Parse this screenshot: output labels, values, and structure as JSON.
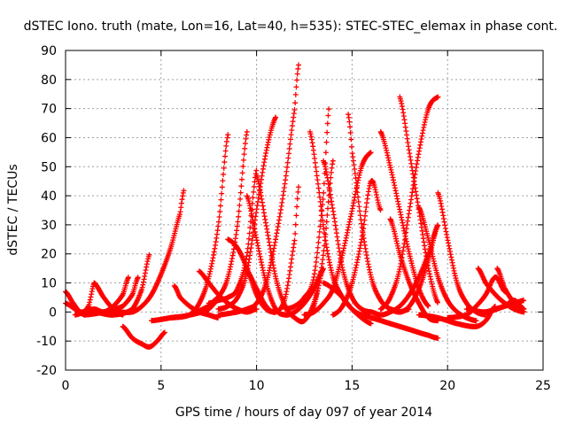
{
  "chart_data": {
    "type": "scatter",
    "title": "dSTEC Iono. truth (mate, Lon=16, Lat=40, h=535): STEC-STEC_elemax in phase cont.",
    "xlabel": "GPS time / hours of day 097 of year 2014",
    "ylabel": "dSTEC  / TECUs",
    "xlim": [
      0,
      25
    ],
    "ylim": [
      -20,
      90
    ],
    "xticks": [
      0,
      5,
      10,
      15,
      20,
      25
    ],
    "yticks": [
      -20,
      -10,
      0,
      10,
      20,
      30,
      40,
      50,
      60,
      70,
      80,
      90
    ],
    "grid": true,
    "marker": "+",
    "color": "#ff0000",
    "series": [
      {
        "x": [
          0.0,
          0.4,
          0.8,
          1.2,
          1.5
        ],
        "y": [
          7,
          3,
          0,
          2,
          10
        ]
      },
      {
        "x": [
          0.0,
          0.5,
          1.0
        ],
        "y": [
          3,
          1,
          -1
        ]
      },
      {
        "x": [
          1.5,
          2.0,
          2.5,
          3.0
        ],
        "y": [
          10,
          5,
          1,
          -1
        ]
      },
      {
        "x": [
          0.5,
          1.0,
          1.5,
          2.0,
          2.5,
          3.0,
          3.3
        ],
        "y": [
          -1,
          0,
          1,
          0,
          2,
          6,
          12
        ]
      },
      {
        "x": [
          1.0,
          2.0,
          3.0,
          3.5,
          3.8
        ],
        "y": [
          -1,
          0,
          2,
          6,
          12
        ]
      },
      {
        "x": [
          1.5,
          2.5,
          3.5,
          4.0,
          4.4
        ],
        "y": [
          0,
          -1,
          1,
          8,
          20
        ]
      },
      {
        "x": [
          2.5,
          3.5,
          4.0,
          4.5,
          5.0,
          5.5,
          6.0,
          6.2
        ],
        "y": [
          0,
          0,
          2,
          6,
          13,
          22,
          34,
          42
        ]
      },
      {
        "x": [
          3.0,
          3.5,
          4.0,
          4.4,
          4.8,
          5.2
        ],
        "y": [
          -5,
          -9,
          -11,
          -12,
          -10,
          -7
        ]
      },
      {
        "x": [
          4.5,
          5.5,
          6.5,
          7.5,
          8.0
        ],
        "y": [
          -3,
          -2,
          -1,
          2,
          5
        ]
      },
      {
        "x": [
          5.5,
          6.5,
          7.0,
          7.5,
          8.0,
          8.5
        ],
        "y": [
          -2,
          -1,
          3,
          12,
          30,
          61
        ]
      },
      {
        "x": [
          6.5,
          7.5,
          8.0,
          8.5,
          9.0,
          9.5
        ],
        "y": [
          -1,
          1,
          5,
          12,
          30,
          62
        ]
      },
      {
        "x": [
          5.7,
          6.0,
          6.5,
          7.0,
          7.5,
          8.0
        ],
        "y": [
          9,
          5,
          2,
          0,
          -1,
          -2
        ]
      },
      {
        "x": [
          7.5,
          8.0,
          8.5,
          9.0,
          9.5,
          10.0
        ],
        "y": [
          3,
          4,
          5,
          8,
          20,
          49
        ]
      },
      {
        "x": [
          8.0,
          8.5,
          9.0,
          9.5,
          10.0,
          10.5,
          11.0
        ],
        "y": [
          1,
          2,
          5,
          14,
          35,
          55,
          67
        ]
      },
      {
        "x": [
          8.0,
          9.0,
          9.5,
          10.0,
          10.5,
          11.0,
          11.5,
          12.0,
          12.2
        ],
        "y": [
          -1,
          0,
          1,
          3,
          10,
          25,
          45,
          70,
          85
        ]
      },
      {
        "x": [
          7.0,
          7.5,
          8.0,
          8.5,
          9.0,
          9.5,
          10.0
        ],
        "y": [
          14,
          10,
          6,
          3,
          1,
          0,
          1
        ]
      },
      {
        "x": [
          8.5,
          9.0,
          9.5,
          10.0,
          10.5,
          11.0
        ],
        "y": [
          25,
          22,
          15,
          6,
          1,
          0
        ]
      },
      {
        "x": [
          9.5,
          10.0,
          10.5,
          11.0,
          11.5,
          12.0,
          12.2
        ],
        "y": [
          14,
          8,
          2,
          0,
          5,
          25,
          43
        ]
      },
      {
        "x": [
          9.5,
          10.0,
          10.5,
          11.0,
          11.5,
          12.0,
          12.5,
          13.0,
          13.5
        ],
        "y": [
          40,
          25,
          10,
          1,
          -1,
          0,
          3,
          8,
          15
        ]
      },
      {
        "x": [
          10.0,
          10.5,
          11.0,
          11.5,
          12.0,
          12.5,
          13.0,
          13.5
        ],
        "y": [
          47,
          30,
          12,
          2,
          -2,
          -3,
          3,
          15
        ]
      },
      {
        "x": [
          11.5,
          12.0,
          12.5,
          13.0,
          13.5,
          13.8
        ],
        "y": [
          1,
          2,
          5,
          12,
          40,
          71
        ]
      },
      {
        "x": [
          12.5,
          13.0,
          13.5,
          14.0
        ],
        "y": [
          -1,
          2,
          20,
          52
        ]
      },
      {
        "x": [
          12.8,
          13.2,
          13.6,
          14.0,
          14.5,
          15.0,
          15.5
        ],
        "y": [
          62,
          45,
          25,
          12,
          5,
          1,
          -1
        ]
      },
      {
        "x": [
          13.5,
          14.0,
          14.5,
          15.0,
          15.5,
          16.0
        ],
        "y": [
          52,
          35,
          15,
          5,
          1,
          0
        ]
      },
      {
        "x": [
          12.5,
          13.0,
          13.5,
          14.0,
          14.5,
          15.0,
          15.5,
          16.0
        ],
        "y": [
          -1,
          0,
          3,
          8,
          20,
          35,
          50,
          55
        ]
      },
      {
        "x": [
          13.5,
          14.0,
          14.5,
          15.0,
          15.5,
          16.0
        ],
        "y": [
          10,
          8,
          5,
          1,
          -2,
          -4
        ]
      },
      {
        "x": [
          14.0,
          14.5,
          15.0,
          15.5,
          16.0,
          16.5
        ],
        "y": [
          -1,
          2,
          10,
          25,
          45,
          35
        ]
      },
      {
        "x": [
          14.8,
          15.0,
          15.5,
          16.0,
          16.5,
          17.0,
          17.5,
          18.0
        ],
        "y": [
          68,
          55,
          30,
          12,
          4,
          1,
          0,
          1
        ]
      },
      {
        "x": [
          16.5,
          17.0,
          17.5,
          18.0,
          18.5,
          19.0
        ],
        "y": [
          62,
          50,
          35,
          20,
          8,
          2
        ]
      },
      {
        "x": [
          17.0,
          17.5,
          18.0,
          18.5,
          19.0,
          19.5
        ],
        "y": [
          32,
          20,
          10,
          3,
          -2,
          -3
        ]
      },
      {
        "x": [
          16.5,
          17.0,
          17.5,
          18.0,
          18.5,
          19.0,
          19.5
        ],
        "y": [
          1,
          5,
          15,
          35,
          55,
          70,
          74
        ]
      },
      {
        "x": [
          17.5,
          18.0,
          18.5,
          19.0,
          19.5
        ],
        "y": [
          74,
          55,
          35,
          15,
          3
        ]
      },
      {
        "x": [
          16.0,
          16.5,
          17.0,
          17.5,
          18.0,
          18.5,
          19.0,
          19.5
        ],
        "y": [
          0,
          -1,
          0,
          2,
          6,
          12,
          20,
          30
        ]
      },
      {
        "x": [
          17.0,
          17.5,
          18.0,
          18.5,
          19.0,
          19.5
        ],
        "y": [
          1,
          0,
          2,
          8,
          18,
          30
        ]
      },
      {
        "x": [
          15.5,
          16.0,
          17.0,
          18.0,
          19.0,
          19.5
        ],
        "y": [
          -1,
          -2,
          -4,
          -6,
          -8,
          -9
        ]
      },
      {
        "x": [
          18.5,
          19.0,
          19.5,
          20.0,
          20.5,
          21.0,
          21.5
        ],
        "y": [
          36,
          25,
          12,
          4,
          0,
          -2,
          -3
        ]
      },
      {
        "x": [
          19.5,
          20.0,
          20.5,
          21.0,
          21.5,
          22.0
        ],
        "y": [
          41,
          25,
          10,
          3,
          0,
          -1
        ]
      },
      {
        "x": [
          18.5,
          19.5,
          20.5,
          21.5,
          22.0,
          22.5
        ],
        "y": [
          -1,
          -2,
          -4,
          -5,
          -3,
          2
        ]
      },
      {
        "x": [
          20.0,
          21.0,
          21.5,
          22.0,
          22.5,
          23.0
        ],
        "y": [
          -2,
          -1,
          2,
          6,
          12,
          7
        ]
      },
      {
        "x": [
          21.6,
          22.0,
          22.5,
          23.0,
          23.5,
          24.0
        ],
        "y": [
          15,
          10,
          6,
          3,
          1,
          0
        ]
      },
      {
        "x": [
          22.6,
          23.0,
          23.5,
          24.0
        ],
        "y": [
          15,
          8,
          3,
          0
        ]
      },
      {
        "x": [
          21.0,
          22.0,
          23.0,
          23.5,
          24.0
        ],
        "y": [
          1,
          0,
          2,
          4,
          1
        ]
      },
      {
        "x": [
          22.0,
          22.5,
          23.0,
          23.5,
          24.0
        ],
        "y": [
          0,
          1,
          2,
          3,
          4
        ]
      }
    ]
  }
}
